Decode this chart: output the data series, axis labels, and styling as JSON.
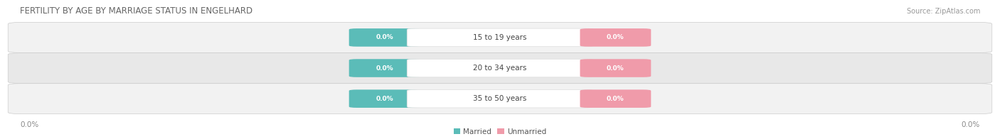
{
  "title": "FERTILITY BY AGE BY MARRIAGE STATUS IN ENGELHARD",
  "source": "Source: ZipAtlas.com",
  "categories": [
    "15 to 19 years",
    "20 to 34 years",
    "35 to 50 years"
  ],
  "married_values": [
    0.0,
    0.0,
    0.0
  ],
  "unmarried_values": [
    0.0,
    0.0,
    0.0
  ],
  "married_color": "#5bbcb8",
  "unmarried_color": "#f09baa",
  "row_bg_color_light": "#f2f2f2",
  "row_bg_color_dark": "#e8e8e8",
  "title_fontsize": 8.5,
  "source_fontsize": 7,
  "label_fontsize": 7.5,
  "value_fontsize": 6.5,
  "cat_fontsize": 7.5,
  "background_color": "#ffffff",
  "legend_married": "Married",
  "legend_unmarried": "Unmarried",
  "axis_label": "0.0%"
}
